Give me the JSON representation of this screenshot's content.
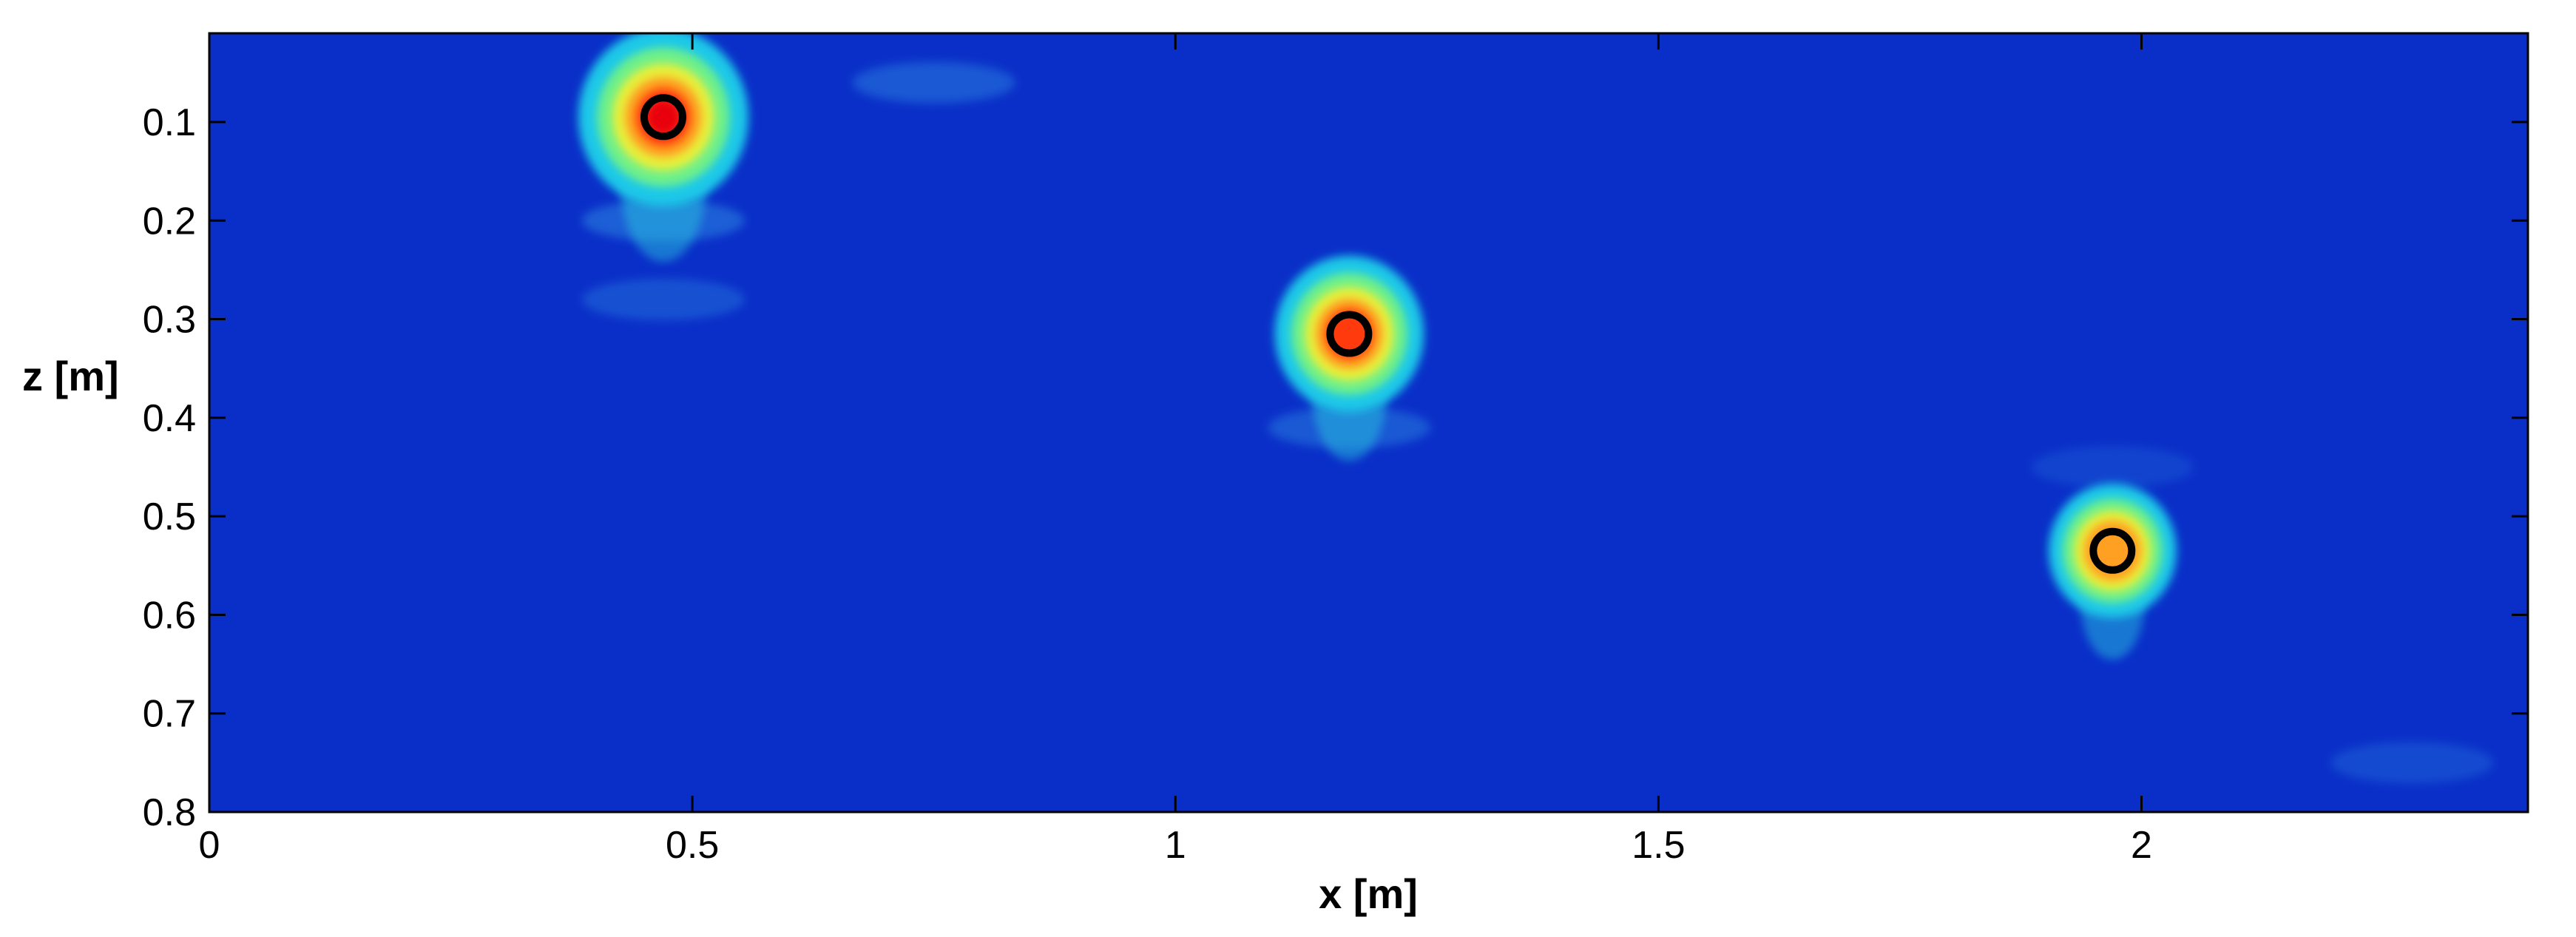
{
  "chart_data": {
    "type": "heatmap",
    "title": "",
    "xlabel": "x [m]",
    "ylabel": "z [m]",
    "xlim": [
      0,
      2.4
    ],
    "ylim": [
      0.8,
      0.01
    ],
    "y_axis_reversed": true,
    "x_ticks": [
      0,
      0.5,
      1,
      1.5,
      2
    ],
    "x_tick_labels": [
      "0",
      "0.5",
      "1",
      "1.5",
      "2"
    ],
    "y_ticks": [
      0.1,
      0.2,
      0.3,
      0.4,
      0.5,
      0.6,
      0.7,
      0.8
    ],
    "y_tick_labels": [
      "0.1",
      "0.2",
      "0.3",
      "0.4",
      "0.5",
      "0.6",
      "0.7",
      "0.8"
    ],
    "grid": false,
    "legend": "none",
    "colormap": "jet",
    "background_color": "#0a2fc8",
    "hotspots": [
      {
        "x": 0.47,
        "z": 0.095,
        "peak": 1.0,
        "marker": "circle"
      },
      {
        "x": 1.18,
        "z": 0.315,
        "peak": 0.85,
        "marker": "circle"
      },
      {
        "x": 1.97,
        "z": 0.535,
        "peak": 0.7,
        "marker": "circle"
      }
    ],
    "faint_features": [
      {
        "x": 0.47,
        "z": 0.2,
        "intensity": 0.35
      },
      {
        "x": 0.47,
        "z": 0.28,
        "intensity": 0.25
      },
      {
        "x": 1.18,
        "z": 0.41,
        "intensity": 0.3
      },
      {
        "x": 0.75,
        "z": 0.06,
        "intensity": 0.3
      },
      {
        "x": 1.97,
        "z": 0.45,
        "intensity": 0.15
      },
      {
        "x": 2.28,
        "z": 0.75,
        "intensity": 0.2
      }
    ],
    "marker_color": "#000000"
  }
}
